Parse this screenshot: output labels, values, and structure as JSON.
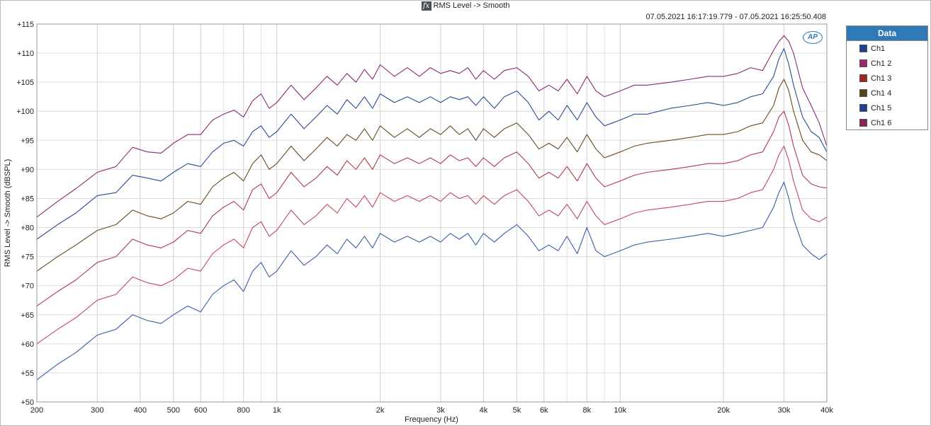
{
  "window": {
    "fx_glyph": "fx",
    "title": "RMS Level -> Smooth",
    "timestamp": "07.05.2021 16:17:19.779 - 07.05.2021 16:25:50.408",
    "logo_text": "AP"
  },
  "legend": {
    "title": "Data",
    "header_color": "#2f7ab6",
    "items": [
      {
        "label": "Ch1",
        "color": "#1f3f8f"
      },
      {
        "label": "Ch1 2",
        "color": "#9b2a6e"
      },
      {
        "label": "Ch1 3",
        "color": "#a42222"
      },
      {
        "label": "Ch1 4",
        "color": "#5a4218"
      },
      {
        "label": "Ch1 5",
        "color": "#1f3f8f"
      },
      {
        "label": "Ch1 6",
        "color": "#8f1f5a"
      }
    ]
  },
  "chart_data": {
    "type": "line",
    "title": "RMS Level -> Smooth",
    "xlabel": "Frequency (Hz)",
    "ylabel": "RMS Level -> Smooth (dBSPL)",
    "x_scale": "log",
    "xlim": [
      200,
      40000
    ],
    "ylim": [
      50,
      115
    ],
    "x_ticks": [
      {
        "value": 200,
        "label": "200"
      },
      {
        "value": 300,
        "label": "300"
      },
      {
        "value": 400,
        "label": "400"
      },
      {
        "value": 500,
        "label": "500"
      },
      {
        "value": 600,
        "label": "600"
      },
      {
        "value": 800,
        "label": "800"
      },
      {
        "value": 1000,
        "label": "1k"
      },
      {
        "value": 2000,
        "label": "2k"
      },
      {
        "value": 3000,
        "label": "3k"
      },
      {
        "value": 4000,
        "label": "4k"
      },
      {
        "value": 5000,
        "label": "5k"
      },
      {
        "value": 6000,
        "label": "6k"
      },
      {
        "value": 8000,
        "label": "8k"
      },
      {
        "value": 10000,
        "label": "10k"
      },
      {
        "value": 20000,
        "label": "20k"
      },
      {
        "value": 30000,
        "label": "30k"
      },
      {
        "value": 40000,
        "label": "40k"
      }
    ],
    "y_ticks": [
      {
        "value": 115,
        "label": "+115"
      },
      {
        "value": 110,
        "label": "+110"
      },
      {
        "value": 105,
        "label": "+105"
      },
      {
        "value": 100,
        "label": "+100"
      },
      {
        "value": 95,
        "label": "+95"
      },
      {
        "value": 90,
        "label": "+90"
      },
      {
        "value": 85,
        "label": "+85"
      },
      {
        "value": 80,
        "label": "+80"
      },
      {
        "value": 75,
        "label": "+75"
      },
      {
        "value": 70,
        "label": "+70"
      },
      {
        "value": 65,
        "label": "+65"
      },
      {
        "value": 60,
        "label": "+60"
      },
      {
        "value": 55,
        "label": "+55"
      },
      {
        "value": 50,
        "label": "+50"
      }
    ],
    "grid": true,
    "legend_position": "right",
    "base_x": [
      200,
      230,
      260,
      300,
      340,
      380,
      420,
      460,
      500,
      550,
      600,
      650,
      700,
      750,
      800,
      850,
      900,
      950,
      1000,
      1100,
      1200,
      1300,
      1400,
      1500,
      1600,
      1700,
      1800,
      1900,
      2000,
      2200,
      2400,
      2600,
      2800,
      3000,
      3200,
      3400,
      3600,
      3800,
      4000,
      4300,
      4600,
      5000,
      5400,
      5800,
      6200,
      6600,
      7000,
      7500,
      8000,
      8500,
      9000,
      9500,
      10000,
      11000,
      12000,
      14000,
      16000,
      18000,
      20000,
      22000,
      24000,
      26000,
      28000,
      29000,
      30000,
      31000,
      32000,
      34000,
      36000,
      38000,
      40000
    ],
    "series": [
      {
        "color": "#8a2a73",
        "x_ref": "base_x",
        "values": [
          81.8,
          84.5,
          86.7,
          89.5,
          90.5,
          93.8,
          93.0,
          92.8,
          94.5,
          96.0,
          96.0,
          98.5,
          99.5,
          100.2,
          99.0,
          101.8,
          103.0,
          100.5,
          101.5,
          104.5,
          102.0,
          104.0,
          106.0,
          104.5,
          106.5,
          105.0,
          107.2,
          105.5,
          108.0,
          106.0,
          107.5,
          106.0,
          107.5,
          106.5,
          107.0,
          106.5,
          107.5,
          105.5,
          107.0,
          105.5,
          107.0,
          107.5,
          106.0,
          103.5,
          104.5,
          103.5,
          105.5,
          103.0,
          106.0,
          103.5,
          102.5,
          103.0,
          103.5,
          104.5,
          104.5,
          105.0,
          105.5,
          106.0,
          106.0,
          106.5,
          107.5,
          107.0,
          110.5,
          112.0,
          113.0,
          112.0,
          110.0,
          104.0,
          101.0,
          98.0,
          94.0
        ]
      },
      {
        "color": "#2b4a93",
        "x_ref": "base_x",
        "values": [
          78.0,
          80.5,
          82.5,
          85.5,
          86.0,
          89.0,
          88.5,
          88.0,
          89.5,
          91.0,
          90.5,
          93.0,
          94.5,
          95.0,
          94.0,
          96.5,
          97.5,
          95.5,
          96.5,
          99.5,
          97.0,
          99.0,
          101.0,
          99.5,
          102.0,
          100.5,
          102.5,
          100.5,
          103.0,
          101.5,
          102.5,
          101.5,
          102.5,
          101.5,
          102.5,
          102.0,
          102.5,
          101.0,
          102.5,
          100.5,
          102.5,
          103.5,
          101.5,
          98.5,
          100.0,
          98.5,
          101.0,
          98.5,
          101.5,
          99.0,
          97.5,
          98.0,
          98.5,
          99.5,
          99.5,
          100.5,
          101.0,
          101.5,
          101.0,
          101.5,
          102.5,
          103.0,
          106.0,
          109.0,
          110.8,
          108.0,
          104.5,
          99.0,
          96.5,
          95.5,
          93.0
        ]
      },
      {
        "color": "#6a4a22",
        "x_ref": "base_x",
        "values": [
          72.5,
          75.0,
          77.0,
          79.5,
          80.5,
          83.0,
          82.0,
          81.5,
          82.5,
          84.5,
          84.0,
          87.0,
          88.5,
          89.5,
          88.0,
          91.0,
          92.5,
          90.0,
          91.0,
          94.0,
          91.5,
          93.5,
          95.5,
          94.0,
          96.0,
          95.0,
          97.0,
          95.0,
          97.5,
          95.5,
          97.0,
          95.5,
          97.0,
          96.0,
          97.5,
          96.0,
          97.0,
          95.0,
          97.0,
          95.5,
          97.0,
          98.0,
          96.0,
          93.5,
          94.5,
          93.5,
          95.5,
          93.0,
          96.0,
          93.5,
          92.0,
          92.5,
          93.0,
          94.0,
          94.5,
          95.0,
          95.5,
          96.0,
          96.0,
          96.5,
          97.5,
          98.0,
          101.0,
          104.0,
          105.5,
          103.5,
          100.0,
          95.0,
          93.0,
          92.5,
          91.5
        ]
      },
      {
        "color": "#b03a4a",
        "x_ref": "base_x",
        "values": [
          66.5,
          69.0,
          71.0,
          74.0,
          75.0,
          78.0,
          77.0,
          76.5,
          77.5,
          79.5,
          79.0,
          82.0,
          83.5,
          84.5,
          83.0,
          86.5,
          87.5,
          85.0,
          86.0,
          89.5,
          87.0,
          88.5,
          90.5,
          89.0,
          91.5,
          90.0,
          92.0,
          90.0,
          92.5,
          91.0,
          92.0,
          91.0,
          92.0,
          91.0,
          92.5,
          91.5,
          92.0,
          90.5,
          92.0,
          90.5,
          92.0,
          93.0,
          91.0,
          88.5,
          89.5,
          88.5,
          90.5,
          88.0,
          91.0,
          88.5,
          87.0,
          87.5,
          88.0,
          89.0,
          89.5,
          90.0,
          90.5,
          91.0,
          91.0,
          91.5,
          92.5,
          93.0,
          96.5,
          99.0,
          100.0,
          97.5,
          94.0,
          89.0,
          87.5,
          87.0,
          86.8
        ]
      },
      {
        "color": "#c04a5a",
        "x_ref": "base_x",
        "values": [
          60.0,
          62.5,
          64.5,
          67.5,
          68.5,
          71.5,
          70.5,
          70.0,
          71.0,
          73.0,
          72.5,
          75.5,
          77.0,
          78.0,
          76.5,
          80.0,
          81.0,
          78.5,
          79.5,
          83.0,
          80.5,
          82.0,
          84.0,
          82.5,
          85.0,
          83.5,
          85.5,
          83.5,
          86.0,
          84.5,
          85.5,
          84.5,
          85.5,
          84.5,
          86.0,
          85.0,
          85.5,
          84.0,
          85.5,
          84.0,
          85.5,
          86.5,
          84.5,
          82.0,
          83.0,
          82.0,
          84.0,
          81.5,
          84.5,
          82.0,
          80.5,
          81.0,
          81.5,
          82.5,
          83.0,
          83.5,
          84.0,
          84.5,
          84.5,
          85.0,
          86.0,
          86.5,
          90.0,
          92.5,
          94.0,
          91.5,
          88.0,
          83.0,
          81.5,
          81.0,
          81.8
        ]
      },
      {
        "color": "#3a5ca8",
        "x_ref": "base_x",
        "values": [
          53.8,
          56.5,
          58.5,
          61.5,
          62.5,
          65.0,
          64.0,
          63.5,
          65.0,
          66.5,
          65.5,
          68.5,
          70.0,
          71.0,
          69.0,
          72.5,
          74.0,
          71.5,
          72.5,
          76.0,
          73.5,
          75.0,
          77.0,
          75.5,
          78.0,
          76.5,
          78.5,
          76.5,
          79.0,
          77.5,
          78.5,
          77.5,
          78.5,
          77.5,
          79.0,
          78.0,
          79.0,
          77.0,
          79.0,
          77.5,
          79.0,
          80.5,
          78.5,
          76.0,
          77.0,
          76.0,
          78.5,
          75.5,
          80.0,
          76.0,
          75.0,
          75.5,
          76.0,
          77.0,
          77.5,
          78.0,
          78.5,
          79.0,
          78.5,
          79.0,
          79.5,
          80.0,
          83.5,
          86.0,
          87.8,
          85.0,
          81.5,
          77.0,
          75.5,
          74.5,
          75.5
        ]
      }
    ]
  }
}
